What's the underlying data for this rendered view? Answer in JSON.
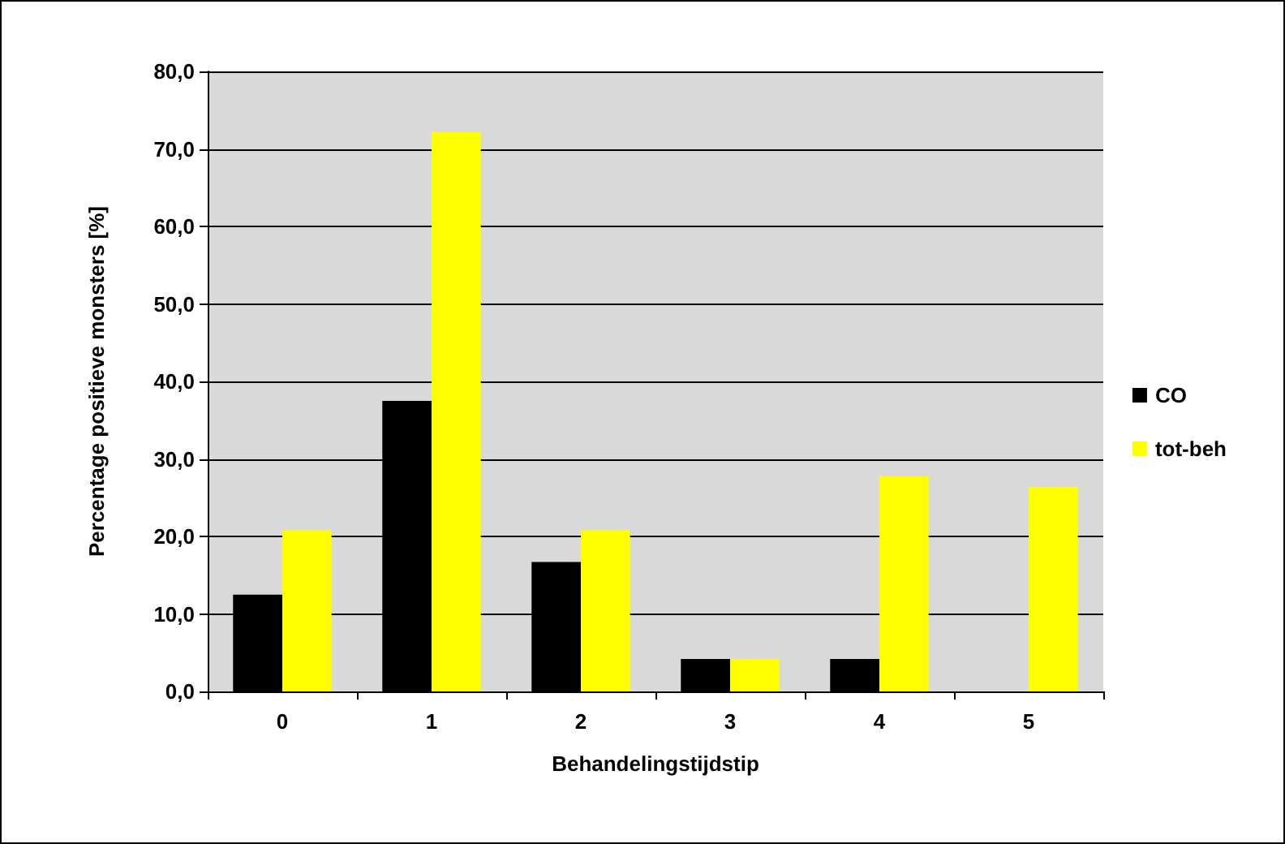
{
  "chart_data": {
    "type": "bar",
    "xlabel": "Behandelingstijdstip",
    "ylabel": "Percentage positieve monsters [%]",
    "categories": [
      "0",
      "1",
      "2",
      "3",
      "4",
      "5"
    ],
    "series": [
      {
        "name": "CO",
        "color": "#000000",
        "values": [
          12.5,
          37.5,
          16.7,
          4.2,
          4.2,
          0
        ]
      },
      {
        "name": "tot-beh",
        "color": "#ffff00",
        "values": [
          20.8,
          72.2,
          20.8,
          4.2,
          27.8,
          26.4
        ]
      }
    ],
    "ylim": [
      0,
      80
    ],
    "yticks": [
      {
        "value": 0,
        "label": "0,0"
      },
      {
        "value": 10,
        "label": "10,0"
      },
      {
        "value": 20,
        "label": "20,0"
      },
      {
        "value": 30,
        "label": "30,0"
      },
      {
        "value": 40,
        "label": "40,0"
      },
      {
        "value": 50,
        "label": "50,0"
      },
      {
        "value": 60,
        "label": "60,0"
      },
      {
        "value": 70,
        "label": "70,0"
      },
      {
        "value": 80,
        "label": "80,0"
      }
    ],
    "grid": "y",
    "legend": "right"
  }
}
